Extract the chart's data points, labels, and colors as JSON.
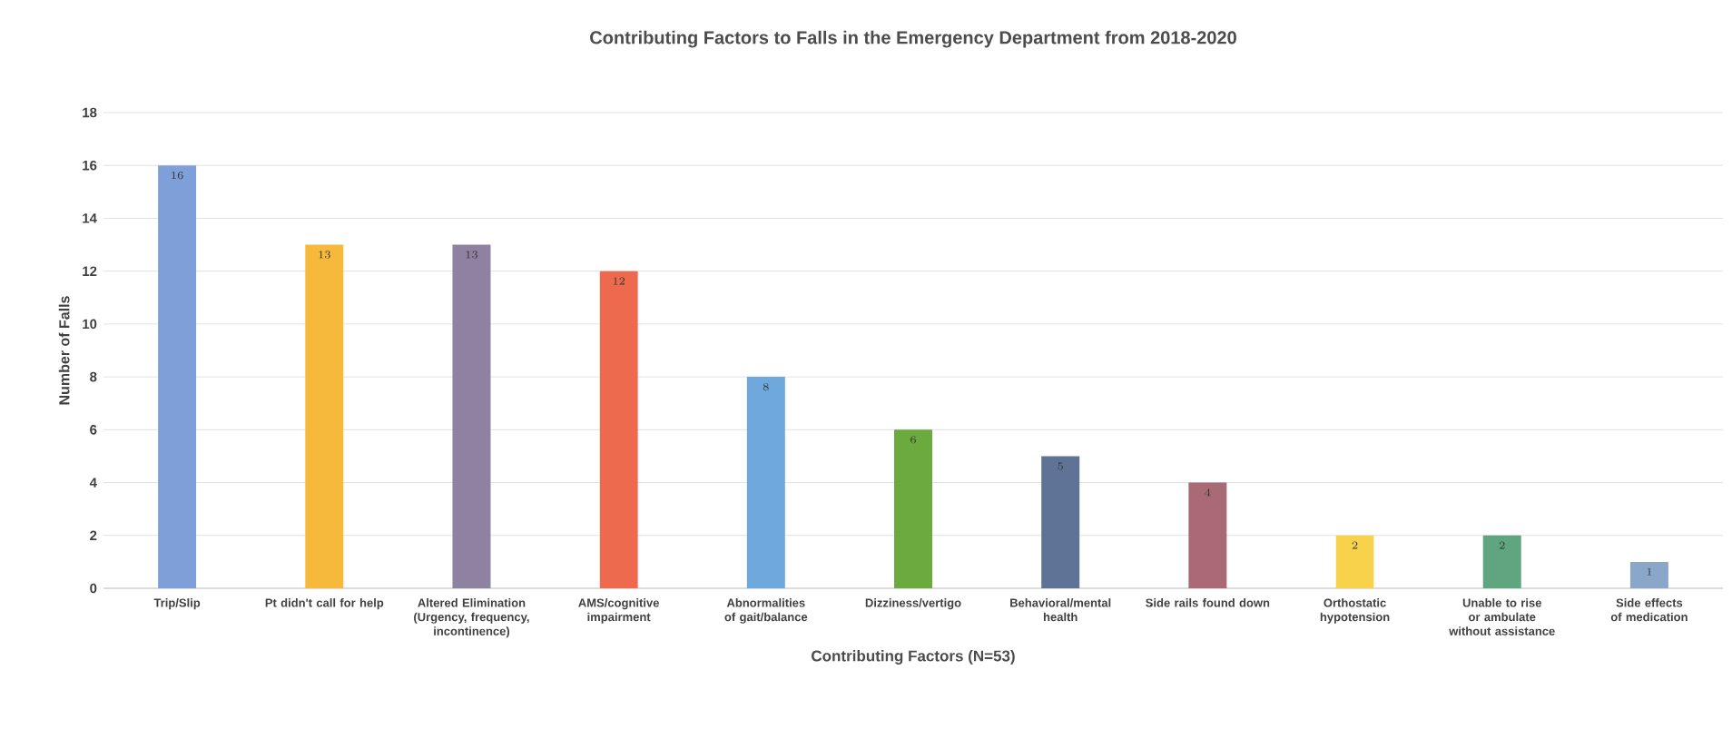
{
  "chart_data": {
    "type": "bar",
    "title": "Contributing Factors to Falls in the Emergency Department from 2018-2020",
    "xlabel": "Contributing Factors (N=53)",
    "ylabel": "Number of Falls",
    "categories": [
      "Trip/Slip",
      "Pt didn't call for help",
      "Altered Elimination (Urgency, frequency, incontinence)",
      "AMS/cognitive impairment",
      "Abnormalities of gait/balance",
      "Dizziness/vertigo",
      "Behavioral/mental health",
      "Side rails found down",
      "Orthostatic hypotension",
      "Unable to rise or ambulate without assistance",
      "Side effects of medication"
    ],
    "values": [
      16,
      13,
      13,
      12,
      8,
      6,
      5,
      4,
      2,
      2,
      1
    ],
    "colors": [
      "#7f9fd8",
      "#f6b93b",
      "#8e82a0",
      "#ed6a4f",
      "#6fa8dc",
      "#6aaa3f",
      "#5f7396",
      "#a96a75",
      "#f7d24a",
      "#5fa57f",
      "#8aa7c9"
    ],
    "ylim": [
      0,
      18
    ],
    "yticks": [
      0,
      2,
      4,
      6,
      8,
      10,
      12,
      14,
      16,
      18
    ],
    "grid": "y",
    "data_labels": true
  }
}
